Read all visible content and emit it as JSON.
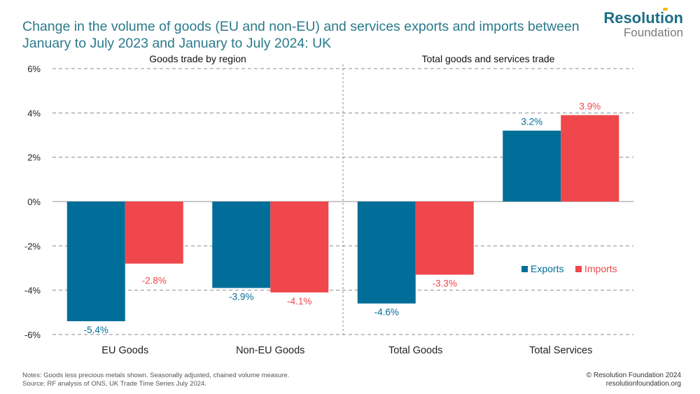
{
  "title": "Change in the volume of goods (EU and non-EU) and services exports and imports between January to July 2023 and January to July 2024: UK",
  "logo": {
    "main": "Resolution",
    "sub": "Foundation"
  },
  "footer": {
    "notes": "Notes: Goods less precious metals shown. Seasonally adjusted, chained volume measure.",
    "source": "Source: RF analysis of ONS, UK Trade Time Series July 2024.",
    "copyright": "© Resolution Foundation 2024",
    "website": "resolutionfoundation.org"
  },
  "chart_data": {
    "type": "bar",
    "panels": [
      "Goods trade by region",
      "Total goods and services trade"
    ],
    "categories": [
      "EU Goods",
      "Non-EU Goods",
      "Total Goods",
      "Total Services"
    ],
    "series": [
      {
        "name": "Exports",
        "color": "#006e98",
        "values": [
          -5.4,
          -3.9,
          -4.6,
          3.2
        ],
        "labels": [
          "-5.4%",
          "-3.9%",
          "-4.6%",
          "3.2%"
        ]
      },
      {
        "name": "Imports",
        "color": "#ef474b",
        "values": [
          -2.8,
          -4.1,
          -3.3,
          3.9
        ],
        "labels": [
          "-2.8%",
          "-4.1%",
          "-3.3%",
          "3.9%"
        ]
      }
    ],
    "ylim": [
      -6,
      6
    ],
    "yticks": [
      6,
      4,
      2,
      0,
      -2,
      -4,
      -6
    ],
    "ytick_labels": [
      "6%",
      "4%",
      "2%",
      "0%",
      "-2%",
      "-4%",
      "-6%"
    ],
    "grid": true,
    "legend": "center-right"
  }
}
